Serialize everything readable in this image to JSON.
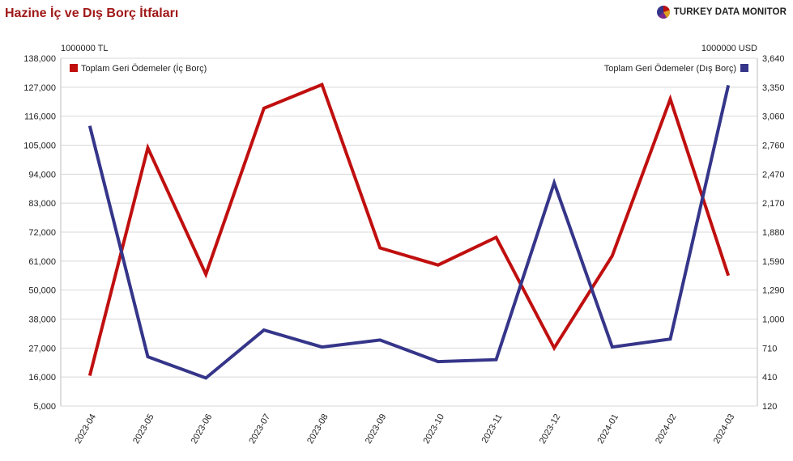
{
  "header": {
    "title": "Hazine İç ve Dış Borç İtfaları",
    "brand": "TURKEY DATA MONITOR"
  },
  "colors": {
    "title": "#a01818",
    "series_domestic": "#c00f0f",
    "series_external": "#35358a",
    "grid": "#d8d8d8"
  },
  "chart_data": {
    "type": "line",
    "x": [
      "2023-04",
      "2023-05",
      "2023-06",
      "2023-07",
      "2023-08",
      "2023-09",
      "2023-10",
      "2023-11",
      "2023-12",
      "2024-01",
      "2024-02",
      "2024-03"
    ],
    "left_axis": {
      "unit": "1000000 TL",
      "ticks": [
        5000,
        16000,
        27000,
        38000,
        50000,
        61000,
        72000,
        83000,
        94000,
        105000,
        116000,
        127000,
        138000
      ],
      "tick_labels": [
        "5,000",
        "16,000",
        "27,000",
        "38,000",
        "50,000",
        "61,000",
        "72,000",
        "83,000",
        "94,000",
        "105,000",
        "116,000",
        "127,000",
        "138,000"
      ]
    },
    "right_axis": {
      "unit": "1000000 USD",
      "ticks": [
        120,
        410,
        710,
        1000,
        1290,
        1590,
        1880,
        2170,
        2470,
        2760,
        3060,
        3350,
        3640
      ],
      "tick_labels": [
        "120",
        "410",
        "710",
        "1,000",
        "1,290",
        "1,590",
        "1,880",
        "2,170",
        "2,470",
        "2,760",
        "3,060",
        "3,350",
        "3,640"
      ]
    },
    "series": [
      {
        "name": "Toplam Geri Ödemeler (İç Borç)",
        "axis": "left",
        "values": [
          16500,
          104000,
          56000,
          119000,
          128000,
          66000,
          59500,
          70000,
          27000,
          63000,
          122500,
          55500
        ]
      },
      {
        "name": "Toplam Geri Ödemeler (Dış Borç)",
        "axis": "right",
        "values": [
          2960,
          620,
          400,
          890,
          720,
          790,
          570,
          590,
          2380,
          720,
          800,
          3370
        ]
      }
    ],
    "legend": {
      "left": "top-left",
      "right": "top-right"
    },
    "grid": true
  }
}
